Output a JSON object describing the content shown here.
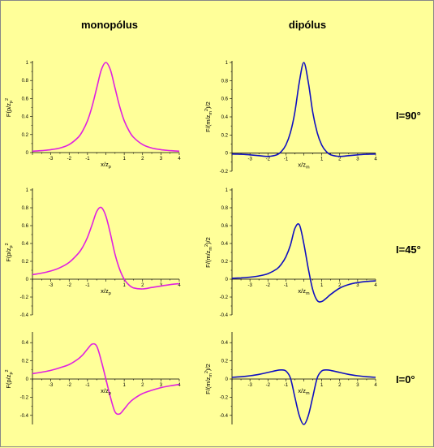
{
  "headers": {
    "left": "monopólus",
    "right": "dipólus"
  },
  "row_labels": [
    "I=90°",
    "I=45°",
    "I=0°"
  ],
  "colors": {
    "background": "#ffff99",
    "monopole": "#e020e0",
    "dipole": "#1010c0"
  },
  "chart_data": [
    {
      "id": "mono90",
      "type": "line",
      "xlabel": "x/z_p",
      "ylabel": "F(p/z_p^2)",
      "xlim": [
        -4,
        4
      ],
      "ylim": [
        0,
        1
      ],
      "xticks": [
        -3,
        -2,
        -1,
        0,
        1,
        2,
        3,
        4
      ],
      "yticks": [
        0,
        0.2,
        0.4,
        0.6,
        0.8,
        1
      ],
      "ytick_labels": [
        "0",
        "0.2",
        "0.4",
        "0.6",
        "0.8",
        "1"
      ],
      "series": [
        {
          "name": "",
          "color": "#e020e0",
          "x": [
            -4,
            -3.5,
            -3,
            -2.5,
            -2,
            -1.5,
            -1.25,
            -1,
            -0.75,
            -0.5,
            -0.25,
            0,
            0.25,
            0.5,
            0.75,
            1,
            1.25,
            1.5,
            2,
            2.5,
            3,
            3.5,
            4
          ],
          "y": [
            0.015,
            0.022,
            0.032,
            0.05,
            0.089,
            0.171,
            0.246,
            0.354,
            0.512,
            0.716,
            0.916,
            1,
            0.916,
            0.716,
            0.512,
            0.354,
            0.246,
            0.171,
            0.089,
            0.05,
            0.032,
            0.022,
            0.015
          ]
        }
      ]
    },
    {
      "id": "dip90",
      "type": "line",
      "xlabel": "x/z_m",
      "ylabel": "F/(m/z_m^2)/2",
      "xlim": [
        -4,
        4
      ],
      "ylim": [
        -0.2,
        1
      ],
      "xticks": [
        -3,
        -2,
        -1,
        0,
        1,
        2,
        3,
        4
      ],
      "yticks": [
        -0.2,
        0,
        0.2,
        0.4,
        0.6,
        0.8,
        1
      ],
      "ytick_labels": [
        "-0.2",
        "0",
        "0.2",
        "0.4",
        "0.6",
        "0.8",
        "1"
      ],
      "series": [
        {
          "name": "",
          "color": "#1010c0",
          "x": [
            -4,
            -3.5,
            -3,
            -2.5,
            -2,
            -1.5,
            -1.25,
            -1,
            -0.75,
            -0.5,
            -0.25,
            0,
            0.25,
            0.5,
            0.75,
            1,
            1.25,
            1.5,
            2,
            2.5,
            3,
            3.5,
            4
          ],
          "y": [
            -0.01,
            -0.013,
            -0.019,
            -0.028,
            -0.036,
            -0.018,
            0.018,
            0.089,
            0.224,
            0.448,
            0.784,
            1,
            0.784,
            0.448,
            0.224,
            0.089,
            0.018,
            -0.018,
            -0.036,
            -0.028,
            -0.019,
            -0.013,
            -0.01
          ]
        }
      ]
    },
    {
      "id": "mono45",
      "type": "line",
      "xlabel": "x/z_p",
      "ylabel": "F(p/z_p^2)",
      "xlim": [
        -4,
        4
      ],
      "ylim": [
        -0.4,
        1
      ],
      "xticks": [
        -3,
        -2,
        -1,
        0,
        1,
        2,
        3,
        4
      ],
      "yticks": [
        -0.4,
        -0.2,
        0,
        0.2,
        0.4,
        0.6,
        0.8,
        1
      ],
      "ytick_labels": [
        "-0.4",
        "-0.2",
        "0",
        "0.2",
        "0.4",
        "0.6",
        "0.8",
        "1"
      ],
      "series": [
        {
          "name": "",
          "color": "#e020e0",
          "x": [
            -4,
            -3.5,
            -3,
            -2.5,
            -2,
            -1.5,
            -1.25,
            -1,
            -0.75,
            -0.5,
            -0.25,
            0,
            0.25,
            0.5,
            0.75,
            1,
            1.25,
            1.5,
            2,
            2.5,
            3,
            3.5,
            4
          ],
          "y": [
            0.051,
            0.068,
            0.092,
            0.129,
            0.188,
            0.289,
            0.364,
            0.47,
            0.61,
            0.758,
            0.804,
            0.707,
            0.505,
            0.279,
            0.111,
            0,
            -0.064,
            -0.097,
            -0.109,
            -0.093,
            -0.076,
            -0.061,
            -0.05
          ]
        }
      ]
    },
    {
      "id": "dip45",
      "type": "line",
      "xlabel": "x/z_m",
      "ylabel": "F/(m/z_m^2)/2",
      "xlim": [
        -4,
        4
      ],
      "ylim": [
        -0.4,
        1
      ],
      "xticks": [
        -3,
        -2,
        -1,
        0,
        1,
        2,
        3,
        4
      ],
      "yticks": [
        -0.4,
        -0.2,
        0,
        0.2,
        0.4,
        0.6,
        0.8,
        1
      ],
      "ytick_labels": [
        "-0.4",
        "-0.2",
        "0",
        "0.2",
        "0.4",
        "0.6",
        "0.8",
        "1"
      ],
      "series": [
        {
          "name": "",
          "color": "#1010c0",
          "x": [
            -4,
            -3.5,
            -3,
            -2.5,
            -2,
            -1.5,
            -1.25,
            -1,
            -0.75,
            -0.5,
            -0.25,
            0,
            0.25,
            0.5,
            0.75,
            1,
            1.25,
            1.5,
            2,
            2.5,
            3,
            3.5,
            4
          ],
          "y": [
            0.01,
            0.015,
            0.023,
            0.036,
            0.061,
            0.115,
            0.168,
            0.25,
            0.378,
            0.566,
            0.61,
            0.4,
            0.12,
            -0.12,
            -0.24,
            -0.25,
            -0.214,
            -0.17,
            -0.1,
            -0.06,
            -0.038,
            -0.025,
            -0.018
          ]
        }
      ]
    },
    {
      "id": "mono0",
      "type": "line",
      "xlabel": "x/z_p",
      "ylabel": "F(p/z_p^2)",
      "xlim": [
        -4,
        4
      ],
      "ylim": [
        -0.5,
        0.5
      ],
      "xticks": [
        -3,
        -2,
        -1,
        0,
        1,
        2,
        3,
        4
      ],
      "yticks": [
        -0.4,
        -0.2,
        0,
        0.2,
        0.4
      ],
      "ytick_labels": [
        "-0.4",
        "-0.2",
        "0",
        "0.2",
        "0.4"
      ],
      "series": [
        {
          "name": "",
          "color": "#e020e0",
          "x": [
            -4,
            -3.5,
            -3,
            -2.5,
            -2,
            -1.5,
            -1.25,
            -1,
            -0.75,
            -0.5,
            -0.25,
            0,
            0.25,
            0.5,
            0.75,
            1,
            1.25,
            1.5,
            2,
            2.5,
            3,
            3.5,
            4
          ],
          "y": [
            0.059,
            0.075,
            0.095,
            0.124,
            0.16,
            0.222,
            0.268,
            0.33,
            0.384,
            0.362,
            0.201,
            0,
            -0.201,
            -0.362,
            -0.384,
            -0.33,
            -0.268,
            -0.222,
            -0.16,
            -0.124,
            -0.095,
            -0.075,
            -0.059
          ]
        }
      ]
    },
    {
      "id": "dip0",
      "type": "line",
      "xlabel": "x/z_m",
      "ylabel": "F/(m/z_m^2)/2",
      "xlim": [
        -4,
        4
      ],
      "ylim": [
        -0.5,
        0.5
      ],
      "xticks": [
        -3,
        -2,
        -1,
        0,
        1,
        2,
        3,
        4
      ],
      "yticks": [
        -0.4,
        -0.2,
        0,
        0.2,
        0.4
      ],
      "ytick_labels": [
        "-0.4",
        "-0.2",
        "0",
        "0.2",
        "0.4"
      ],
      "series": [
        {
          "name": "",
          "color": "#1010c0",
          "x": [
            -4,
            -3.5,
            -3,
            -2.5,
            -2,
            -1.5,
            -1.25,
            -1,
            -0.75,
            -0.5,
            -0.25,
            0,
            0.25,
            0.5,
            0.75,
            1,
            1.25,
            1.5,
            2,
            2.5,
            3,
            3.5,
            4
          ],
          "y": [
            0.019,
            0.025,
            0.036,
            0.051,
            0.072,
            0.095,
            0.1,
            0.088,
            0.013,
            -0.196,
            -0.404,
            -0.5,
            -0.404,
            -0.196,
            0.013,
            0.088,
            0.1,
            0.095,
            0.072,
            0.051,
            0.036,
            0.025,
            0.019
          ]
        }
      ]
    }
  ]
}
